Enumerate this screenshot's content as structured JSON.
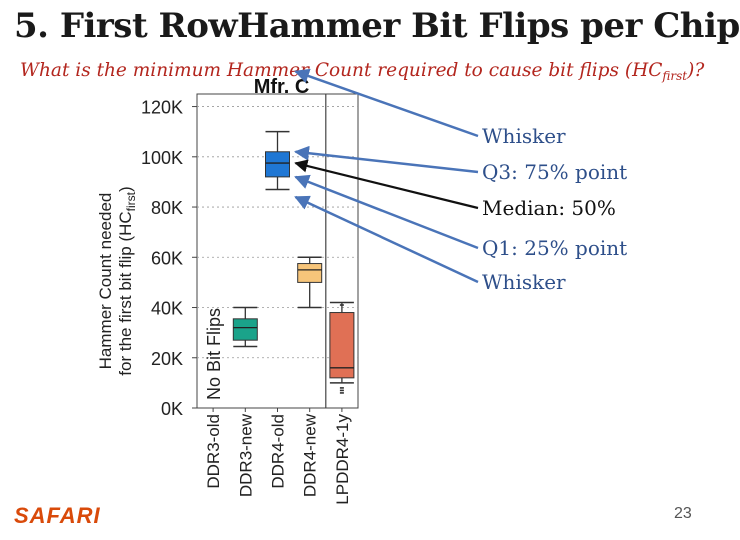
{
  "slide": {
    "title": "5. First RowHammer Bit Flips per Chip",
    "subtitle_pre": "What is the minimum Hammer Count required to cause bit flips (HC",
    "subtitle_sub": "first",
    "subtitle_post": ")?",
    "logo": "SAFARI",
    "page_number": "23"
  },
  "annotations": [
    {
      "label": "Whisker",
      "target": "upper whisker"
    },
    {
      "label": "Q3: 75% point",
      "target": "Q3"
    },
    {
      "label": "Median: 50%",
      "target": "median"
    },
    {
      "label": "Q1: 25% point",
      "target": "Q1"
    },
    {
      "label": "Whisker",
      "target": "lower whisker"
    }
  ],
  "chart_data": {
    "type": "box",
    "title": "Mfr. C",
    "ylabel_line1": "Hammer Count needed",
    "ylabel_line2": "for the first bit flip (HC",
    "ylabel_sub": "first",
    "ylabel_end": ")",
    "ylim": [
      0,
      125000
    ],
    "yticks": [
      0,
      20000,
      40000,
      60000,
      80000,
      100000,
      120000
    ],
    "ytick_labels": [
      "0K",
      "20K",
      "40K",
      "60K",
      "80K",
      "100K",
      "120K"
    ],
    "grid": true,
    "categories": [
      "DDR3-old",
      "DDR3-new",
      "DDR4-old",
      "DDR4-new",
      "LPDDR4-1y"
    ],
    "no_data_label": "No Bit Flips",
    "no_data_category": "DDR3-old",
    "separator_after": "DDR4-new",
    "boxes": [
      {
        "category": "DDR3-old",
        "no_data": true
      },
      {
        "category": "DDR3-new",
        "color": "#1aa38a",
        "whisker_low": 24500,
        "q1": 27000,
        "median": 32000,
        "q3": 35500,
        "whisker_high": 40000,
        "outliers": []
      },
      {
        "category": "DDR4-old",
        "color": "#1f77d4",
        "whisker_low": 87000,
        "q1": 92000,
        "median": 97500,
        "q3": 102000,
        "whisker_high": 110000,
        "outliers": []
      },
      {
        "category": "DDR4-new",
        "color": "#f7c57a",
        "whisker_low": 40000,
        "q1": 50000,
        "median": 55000,
        "q3": 57500,
        "whisker_high": 60000,
        "outliers": []
      },
      {
        "category": "LPDDR4-1y",
        "color": "#e07055",
        "whisker_low": 10000,
        "q1": 12000,
        "median": 16000,
        "q3": 38000,
        "whisker_high": 42000,
        "outliers": [
          8000,
          7000,
          6000,
          41000
        ]
      }
    ]
  }
}
